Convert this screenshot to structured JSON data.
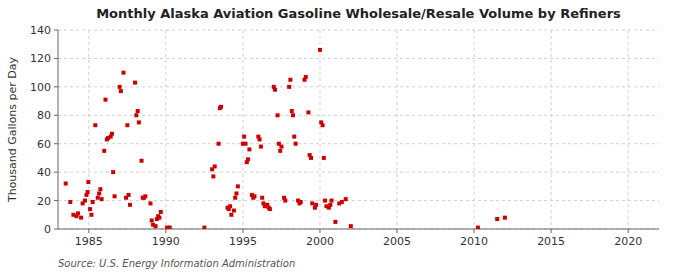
{
  "chart_data": {
    "type": "scatter",
    "title": "Monthly Alaska Aviation Gasoline Wholesale/Resale Volume by Refiners",
    "y_label": "Thousand Gallons per Day",
    "annotations": [
      "Source: U.S. Energy Information Administration"
    ],
    "color": "#cc0000",
    "marker": "square",
    "grid": true,
    "xlim": [
      1983.0,
      2022.0
    ],
    "ylim": [
      0,
      140
    ],
    "xticks": [
      1985,
      1990,
      1995,
      2000,
      2005,
      2010,
      2015,
      2020
    ],
    "yticks": [
      0,
      20,
      40,
      60,
      80,
      100,
      120,
      140
    ],
    "x": [
      1983.5,
      1983.8,
      1984.0,
      1984.2,
      1984.3,
      1984.5,
      1984.6,
      1984.75,
      1984.85,
      1984.92,
      1984.97,
      1985.08,
      1985.17,
      1985.25,
      1985.42,
      1985.58,
      1985.67,
      1985.75,
      1985.83,
      1986.0,
      1986.08,
      1986.17,
      1986.25,
      1986.42,
      1986.5,
      1986.58,
      1986.67,
      1987.0,
      1987.08,
      1987.25,
      1987.42,
      1987.5,
      1987.58,
      1987.67,
      1988.0,
      1988.08,
      1988.17,
      1988.25,
      1988.42,
      1988.5,
      1988.58,
      1988.67,
      1989.0,
      1989.08,
      1989.17,
      1989.33,
      1989.42,
      1989.5,
      1989.58,
      1989.67,
      1990.08,
      1990.25,
      1992.5,
      1993.0,
      1993.08,
      1993.17,
      1993.42,
      1993.5,
      1993.58,
      1994.0,
      1994.08,
      1994.17,
      1994.25,
      1994.42,
      1994.5,
      1994.58,
      1994.67,
      1995.0,
      1995.08,
      1995.17,
      1995.25,
      1995.33,
      1995.42,
      1995.58,
      1995.67,
      1995.75,
      1996.0,
      1996.08,
      1996.17,
      1996.25,
      1996.33,
      1996.42,
      1996.58,
      1996.67,
      1996.75,
      1997.0,
      1997.08,
      1997.25,
      1997.33,
      1997.42,
      1997.5,
      1997.67,
      1997.75,
      1998.0,
      1998.08,
      1998.17,
      1998.25,
      1998.33,
      1998.42,
      1998.58,
      1998.67,
      1998.75,
      1999.0,
      1999.08,
      1999.25,
      1999.33,
      1999.42,
      1999.5,
      1999.67,
      1999.75,
      2000.0,
      2000.08,
      2000.17,
      2000.25,
      2000.33,
      2000.42,
      2000.58,
      2000.67,
      2000.75,
      2001.0,
      2001.25,
      2001.42,
      2001.67,
      2002.0,
      2010.25,
      2011.5,
      2012.0
    ],
    "values": [
      32,
      19,
      10,
      9,
      11,
      8,
      18,
      20,
      24,
      26,
      33,
      14,
      10,
      19,
      73,
      22,
      25,
      28,
      21,
      55,
      91,
      63,
      64,
      65,
      67,
      40,
      23,
      100,
      97,
      110,
      22,
      73,
      24,
      17,
      103,
      80,
      83,
      75,
      48,
      22,
      22,
      23,
      18,
      6,
      3,
      2,
      7,
      9,
      8,
      12,
      1,
      1,
      1,
      42,
      37,
      44,
      60,
      85,
      86,
      15,
      14,
      16,
      10,
      13,
      22,
      25,
      30,
      60,
      65,
      60,
      47,
      49,
      56,
      24,
      22,
      23,
      65,
      63,
      58,
      22,
      18,
      16,
      17,
      15,
      14,
      100,
      98,
      80,
      60,
      55,
      58,
      22,
      20,
      100,
      105,
      83,
      80,
      65,
      60,
      20,
      18,
      19,
      105,
      107,
      82,
      52,
      50,
      18,
      15,
      17,
      126,
      75,
      73,
      50,
      20,
      16,
      15,
      17,
      20,
      5,
      18,
      19,
      21,
      2,
      1,
      7,
      8
    ]
  }
}
